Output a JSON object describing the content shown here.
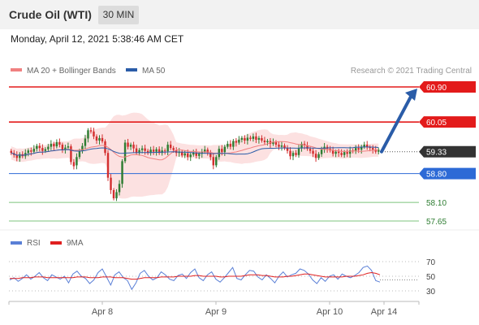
{
  "header": {
    "title": "Crude Oil (WTI)",
    "timeframe": "30 MIN"
  },
  "datetime": "Monday, April 12, 2021 5:38:46 AM CET",
  "legend": {
    "ma20": "MA 20 + Bollinger Bands",
    "ma50": "MA 50",
    "copyright": "Research © 2021 Trading Central"
  },
  "rsi_legend": {
    "rsi": "RSI",
    "ma": "9MA"
  },
  "colors": {
    "resistance": "#e31b1b",
    "support": "#2d6ad6",
    "target": "#2a5ca8",
    "current": "#333333",
    "green_lines": "#7cc47c",
    "bollinger": "#fbdcdc",
    "up_candle": "#2e7d32",
    "down_candle": "#d32f2f",
    "rsi": "#5a7fd6",
    "rsi_ma": "#e02020"
  },
  "chart_data": [
    {
      "type": "candlestick",
      "title": "Crude Oil (WTI)",
      "interval": "30 MIN",
      "ylim": [
        57.4,
        61.15
      ],
      "x_ticks": [
        "Apr 8",
        "Apr 9",
        "Apr 10",
        "Apr 14"
      ],
      "current_price": 59.33,
      "levels": [
        {
          "label": "60.90",
          "value": 60.9,
          "kind": "resistance"
        },
        {
          "label": "60.05",
          "value": 60.05,
          "kind": "resistance"
        },
        {
          "label": "59.33",
          "value": 59.33,
          "kind": "current"
        },
        {
          "label": "58.80",
          "value": 58.8,
          "kind": "support"
        },
        {
          "label": "58.10",
          "value": 58.1,
          "kind": "support-minor"
        },
        {
          "label": "57.65",
          "value": 57.65,
          "kind": "support-minor"
        }
      ],
      "series": [
        {
          "name": "MA 20 + Bollinger Bands"
        },
        {
          "name": "MA 50"
        }
      ],
      "candles": [
        [
          59.35,
          59.3
        ],
        [
          59.3,
          59.25
        ],
        [
          59.25,
          59.18
        ],
        [
          59.18,
          59.27
        ],
        [
          59.27,
          59.22
        ],
        [
          59.22,
          59.3
        ],
        [
          59.3,
          59.36
        ],
        [
          59.36,
          59.33
        ],
        [
          59.33,
          59.4
        ],
        [
          59.4,
          59.47
        ],
        [
          59.47,
          59.42
        ],
        [
          59.42,
          59.35
        ],
        [
          59.35,
          59.39
        ],
        [
          59.39,
          59.45
        ],
        [
          59.45,
          59.52
        ],
        [
          59.52,
          59.46
        ],
        [
          59.46,
          59.56
        ],
        [
          59.56,
          59.5
        ],
        [
          59.5,
          59.38
        ],
        [
          59.38,
          59.43
        ],
        [
          59.43,
          59.46
        ],
        [
          59.46,
          59.08
        ],
        [
          59.08,
          58.98
        ],
        [
          59.0,
          59.2
        ],
        [
          59.2,
          59.35
        ],
        [
          59.35,
          59.47
        ],
        [
          59.47,
          59.65
        ],
        [
          59.65,
          59.85
        ],
        [
          59.85,
          59.82
        ],
        [
          59.82,
          59.7
        ],
        [
          59.7,
          59.6
        ],
        [
          59.6,
          59.66
        ],
        [
          59.66,
          59.58
        ],
        [
          59.58,
          59.3
        ],
        [
          59.3,
          58.7
        ],
        [
          58.7,
          58.4
        ],
        [
          58.4,
          58.2
        ],
        [
          58.2,
          58.35
        ],
        [
          58.35,
          58.55
        ],
        [
          58.55,
          59.1
        ],
        [
          59.1,
          59.55
        ],
        [
          59.55,
          59.45
        ],
        [
          59.45,
          59.5
        ],
        [
          59.5,
          59.41
        ],
        [
          59.41,
          59.3
        ],
        [
          59.3,
          59.37
        ],
        [
          59.37,
          59.41
        ],
        [
          59.41,
          59.35
        ],
        [
          59.35,
          59.3
        ],
        [
          59.3,
          59.38
        ],
        [
          59.38,
          59.33
        ],
        [
          59.33,
          59.39
        ],
        [
          59.39,
          59.3
        ],
        [
          59.3,
          59.36
        ],
        [
          59.36,
          59.34
        ],
        [
          59.34,
          59.5
        ],
        [
          59.5,
          59.42
        ],
        [
          59.42,
          59.37
        ],
        [
          59.37,
          59.3
        ],
        [
          59.3,
          59.33
        ],
        [
          59.33,
          59.24
        ],
        [
          59.24,
          59.29
        ],
        [
          59.29,
          59.2
        ],
        [
          59.2,
          59.26
        ],
        [
          59.26,
          59.31
        ],
        [
          59.31,
          59.23
        ],
        [
          59.23,
          59.28
        ],
        [
          59.28,
          59.33
        ],
        [
          59.33,
          59.38
        ],
        [
          59.38,
          59.3
        ],
        [
          59.3,
          59.2
        ],
        [
          59.2,
          59.0
        ],
        [
          59.0,
          59.2
        ],
        [
          59.2,
          59.4
        ],
        [
          59.4,
          59.32
        ],
        [
          59.32,
          59.45
        ],
        [
          59.45,
          59.52
        ],
        [
          59.52,
          59.45
        ],
        [
          59.45,
          59.59
        ],
        [
          59.59,
          59.55
        ],
        [
          59.55,
          59.62
        ],
        [
          59.62,
          59.66
        ],
        [
          59.66,
          59.6
        ],
        [
          59.6,
          59.67
        ],
        [
          59.67,
          59.64
        ],
        [
          59.64,
          59.7
        ],
        [
          59.7,
          59.62
        ],
        [
          59.62,
          59.66
        ],
        [
          59.66,
          59.6
        ],
        [
          59.6,
          59.56
        ],
        [
          59.56,
          59.59
        ],
        [
          59.59,
          59.52
        ],
        [
          59.52,
          59.56
        ],
        [
          59.56,
          59.5
        ],
        [
          59.5,
          59.45
        ],
        [
          59.45,
          59.48
        ],
        [
          59.48,
          59.42
        ],
        [
          59.42,
          59.35
        ],
        [
          59.35,
          59.22
        ],
        [
          59.22,
          59.3
        ],
        [
          59.3,
          59.25
        ],
        [
          59.25,
          59.41
        ],
        [
          59.41,
          59.52
        ],
        [
          59.52,
          59.48
        ],
        [
          59.48,
          59.4
        ],
        [
          59.4,
          59.35
        ],
        [
          59.35,
          59.28
        ],
        [
          59.28,
          59.18
        ],
        [
          59.18,
          59.27
        ],
        [
          59.27,
          59.38
        ],
        [
          59.38,
          59.45
        ],
        [
          59.45,
          59.4
        ],
        [
          59.4,
          59.36
        ],
        [
          59.36,
          59.28
        ],
        [
          59.28,
          59.33
        ],
        [
          59.33,
          59.3
        ],
        [
          59.3,
          59.25
        ],
        [
          59.25,
          59.32
        ],
        [
          59.32,
          59.28
        ],
        [
          59.28,
          59.36
        ],
        [
          59.36,
          59.34
        ],
        [
          59.34,
          59.42
        ],
        [
          59.42,
          59.38
        ],
        [
          59.38,
          59.45
        ],
        [
          59.45,
          59.5
        ],
        [
          59.5,
          59.44
        ],
        [
          59.44,
          59.42
        ],
        [
          59.42,
          59.38
        ],
        [
          59.38,
          59.33
        ],
        [
          59.33,
          59.38
        ]
      ]
    },
    {
      "type": "line",
      "title": "RSI",
      "y_ticks": [
        70,
        50,
        30
      ],
      "ylim": [
        20,
        80
      ],
      "series": [
        {
          "name": "RSI",
          "values": [
            45,
            48,
            43,
            47,
            52,
            46,
            50,
            55,
            48,
            44,
            52,
            49,
            46,
            50,
            41,
            53,
            57,
            50,
            47,
            40,
            45,
            55,
            60,
            49,
            38,
            52,
            56,
            48,
            44,
            32,
            41,
            54,
            58,
            50,
            45,
            48,
            56,
            52,
            46,
            44,
            51,
            53,
            47,
            55,
            60,
            48,
            44,
            52,
            56,
            46,
            42,
            48,
            55,
            62,
            47,
            45,
            52,
            58,
            57,
            49,
            45,
            52,
            47,
            41,
            50,
            56,
            49,
            52,
            54,
            60,
            58,
            53,
            45,
            40,
            48,
            43,
            50,
            52,
            46,
            53,
            50,
            48,
            51,
            55,
            62,
            64,
            58,
            44,
            42
          ]
        },
        {
          "name": "9MA",
          "values": [
            47,
            47,
            47,
            48,
            48,
            48,
            49,
            49,
            49,
            48,
            48,
            48,
            48,
            48,
            48,
            48,
            49,
            49,
            49,
            48,
            48,
            48,
            49,
            49,
            49,
            48,
            48,
            48,
            47,
            46,
            46,
            47,
            48,
            48,
            48,
            48,
            49,
            49,
            49,
            49,
            50,
            50,
            50,
            50,
            51,
            51,
            50,
            50,
            50,
            50,
            49,
            49,
            50,
            50,
            50,
            50,
            51,
            52,
            52,
            52,
            51,
            51,
            50,
            49,
            49,
            49,
            50,
            50,
            51,
            52,
            53,
            53,
            52,
            51,
            50,
            49,
            49,
            49,
            49,
            49,
            50,
            50,
            50,
            51,
            52,
            54,
            55,
            54,
            52
          ]
        }
      ]
    }
  ]
}
